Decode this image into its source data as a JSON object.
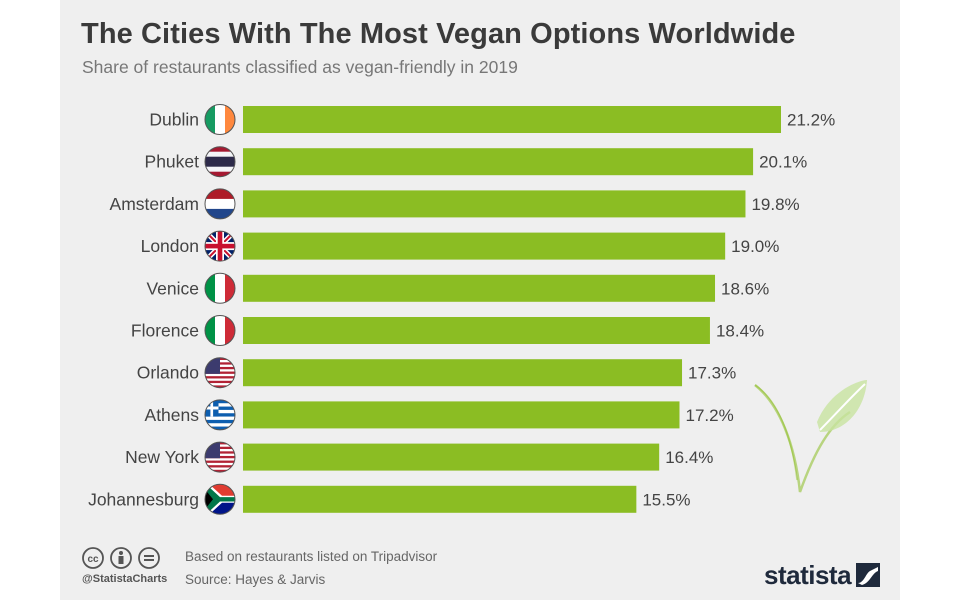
{
  "header": {
    "title": "The Cities With The Most Vegan Options Worldwide",
    "subtitle": "Share of restaurants classified as vegan-friendly in 2019"
  },
  "colors": {
    "bar": "#8bbd23",
    "panel": "#efefef",
    "text": "#3a3a3a",
    "label": "#444444"
  },
  "chart_data": {
    "type": "bar",
    "orientation": "horizontal",
    "categories": [
      "Dublin",
      "Phuket",
      "Amsterdam",
      "London",
      "Venice",
      "Florence",
      "Orlando",
      "Athens",
      "New York",
      "Johannesburg"
    ],
    "values": [
      21.2,
      20.1,
      19.8,
      19.0,
      18.6,
      18.4,
      17.3,
      17.2,
      16.4,
      15.5
    ],
    "value_labels": [
      "21.2%",
      "20.1%",
      "19.8%",
      "19.0%",
      "18.6%",
      "18.4%",
      "17.3%",
      "17.2%",
      "16.4%",
      "15.5%"
    ],
    "flags": [
      "ireland-flag-icon",
      "thailand-flag-icon",
      "netherlands-flag-icon",
      "uk-flag-icon",
      "italy-flag-icon",
      "italy-flag-icon",
      "usa-flag-icon",
      "greece-flag-icon",
      "usa-flag-icon",
      "south-africa-flag-icon"
    ],
    "xlim": [
      0,
      21.2
    ],
    "grid": false,
    "legend": "none"
  },
  "footer": {
    "handle": "@StatistaCharts",
    "note": "Based on restaurants listed on Tripadvisor",
    "source": "Source: Hayes & Jarvis",
    "brand": "statista"
  }
}
